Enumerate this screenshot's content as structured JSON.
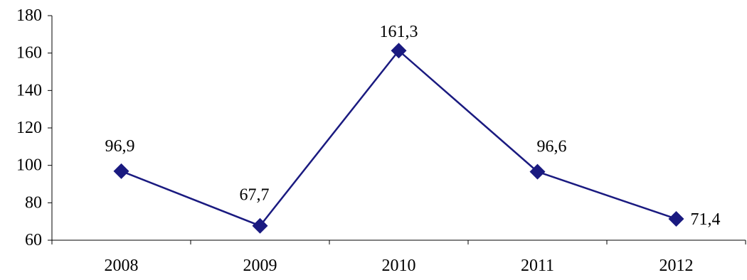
{
  "chart_data": {
    "type": "line",
    "categories": [
      "2008",
      "2009",
      "2010",
      "2011",
      "2012"
    ],
    "series": [
      {
        "values": [
          96.9,
          67.7,
          161.3,
          96.6,
          71.4
        ],
        "data_labels": [
          "96,9",
          "67,7",
          "161,3",
          "96,6",
          "71,4"
        ],
        "color": "#1a1a80",
        "marker": "diamond"
      }
    ],
    "yticks": [
      "60",
      "80",
      "100",
      "120",
      "140",
      "160",
      "180"
    ],
    "ylim": [
      60,
      180
    ],
    "grid": false,
    "legend": "none"
  }
}
